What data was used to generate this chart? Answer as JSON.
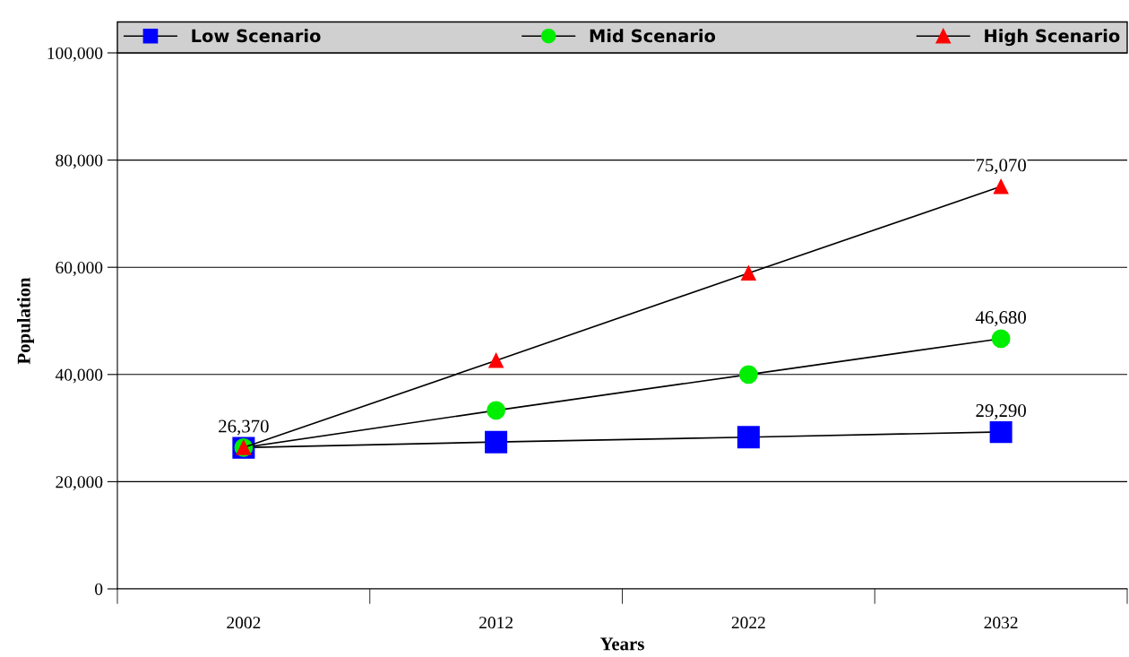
{
  "chart_data": {
    "type": "line",
    "xlabel": "Years",
    "ylabel": "Population",
    "categories": [
      "2002",
      "2012",
      "2022",
      "2032"
    ],
    "ylim": [
      0,
      100000
    ],
    "yticks": [
      {
        "value": 0,
        "label": "0"
      },
      {
        "value": 20000,
        "label": "20,000"
      },
      {
        "value": 40000,
        "label": "40,000"
      },
      {
        "value": 60000,
        "label": "60,000"
      },
      {
        "value": 80000,
        "label": "80,000"
      },
      {
        "value": 100000,
        "label": "100,000"
      }
    ],
    "grid": "y",
    "legend": "top",
    "line_style": "solid",
    "series": [
      {
        "name": "Low Scenario",
        "color": "#0000ff",
        "marker": "square",
        "values": [
          26370,
          27400,
          28300,
          29290
        ],
        "value_labels": [
          "26,370",
          null,
          null,
          "29,290"
        ]
      },
      {
        "name": "Mid Scenario",
        "color": "#00ee00",
        "marker": "circle",
        "values": [
          26370,
          33300,
          40000,
          46680
        ],
        "value_labels": [
          null,
          null,
          null,
          "46,680"
        ]
      },
      {
        "name": "High Scenario",
        "color": "#ff0000",
        "marker": "triangle",
        "values": [
          26370,
          42600,
          58900,
          75070
        ],
        "value_labels": [
          null,
          null,
          null,
          "75,070"
        ]
      }
    ]
  }
}
